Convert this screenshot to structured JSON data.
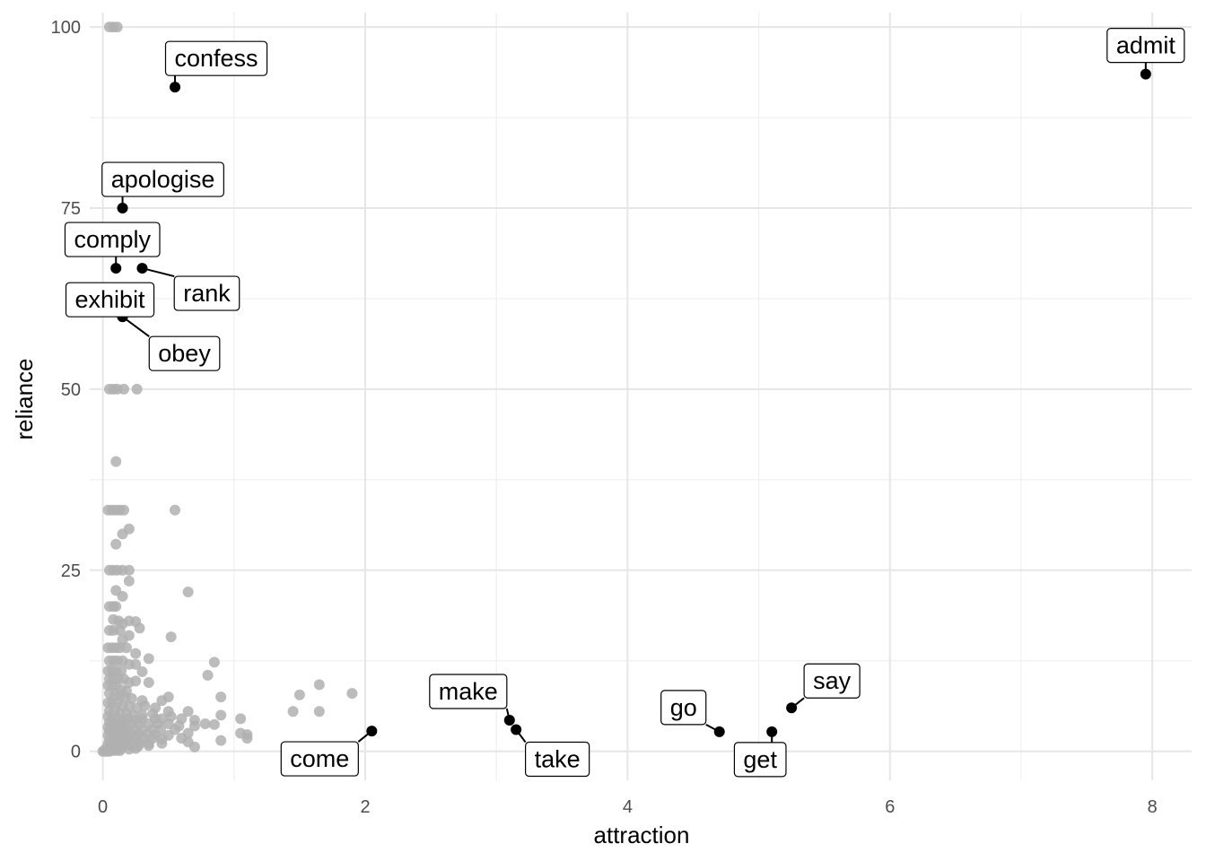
{
  "chart_data": {
    "type": "scatter",
    "xlabel": "attraction",
    "ylabel": "reliance",
    "xlim": [
      -0.1,
      8.3
    ],
    "ylim": [
      -4,
      102
    ],
    "x_ticks": [
      0,
      2,
      4,
      6,
      8
    ],
    "y_ticks": [
      0,
      25,
      50,
      75,
      100
    ],
    "grid": true,
    "legend": "none",
    "colors": {
      "background_points": "#b0b0b0",
      "highlight_points": "#000000"
    },
    "highlighted": [
      {
        "label": "admit",
        "x": 7.95,
        "y": 93.5
      },
      {
        "label": "confess",
        "x": 0.55,
        "y": 91.7
      },
      {
        "label": "apologise",
        "x": 0.15,
        "y": 75
      },
      {
        "label": "comply",
        "x": 0.1,
        "y": 66.7
      },
      {
        "label": "rank",
        "x": 0.3,
        "y": 66.7
      },
      {
        "label": "exhibit",
        "x": 0.15,
        "y": 60
      },
      {
        "label": "obey",
        "x": 0.15,
        "y": 60
      },
      {
        "label": "make",
        "x": 3.1,
        "y": 4.3
      },
      {
        "label": "take",
        "x": 3.15,
        "y": 3
      },
      {
        "label": "come",
        "x": 2.05,
        "y": 2.8
      },
      {
        "label": "say",
        "x": 5.25,
        "y": 6
      },
      {
        "label": "go",
        "x": 4.7,
        "y": 2.7
      },
      {
        "label": "get",
        "x": 5.1,
        "y": 2.7
      }
    ],
    "background_points": [
      [
        0.05,
        100
      ],
      [
        0.08,
        100
      ],
      [
        0.11,
        100
      ],
      [
        0.05,
        50
      ],
      [
        0.08,
        50
      ],
      [
        0.11,
        50
      ],
      [
        0.16,
        50
      ],
      [
        0.26,
        50
      ],
      [
        0.1,
        40
      ],
      [
        0.04,
        33.3
      ],
      [
        0.07,
        33.3
      ],
      [
        0.1,
        33.3
      ],
      [
        0.13,
        33.3
      ],
      [
        0.16,
        33.3
      ],
      [
        0.55,
        33.3
      ],
      [
        0.2,
        30.7
      ],
      [
        0.15,
        30
      ],
      [
        0.1,
        28.6
      ],
      [
        0.05,
        25
      ],
      [
        0.08,
        25
      ],
      [
        0.11,
        25
      ],
      [
        0.15,
        25
      ],
      [
        0.2,
        25
      ],
      [
        0.2,
        23.5
      ],
      [
        0.1,
        22.2
      ],
      [
        0.15,
        21.4
      ],
      [
        0.65,
        22
      ],
      [
        0.05,
        20
      ],
      [
        0.08,
        20
      ],
      [
        0.1,
        20
      ],
      [
        0.08,
        18.2
      ],
      [
        0.12,
        18
      ],
      [
        0.2,
        18
      ],
      [
        0.25,
        17.9
      ],
      [
        0.15,
        17.6
      ],
      [
        0.28,
        17
      ],
      [
        0.05,
        16.7
      ],
      [
        0.08,
        16.7
      ],
      [
        0.13,
        16.7
      ],
      [
        0.2,
        16
      ],
      [
        0.15,
        15.4
      ],
      [
        0.52,
        15.8
      ],
      [
        0.04,
        14.3
      ],
      [
        0.07,
        14.3
      ],
      [
        0.1,
        14.3
      ],
      [
        0.13,
        14.3
      ],
      [
        0.18,
        14.3
      ],
      [
        0.25,
        13.5
      ],
      [
        0.05,
        12.5
      ],
      [
        0.08,
        12.5
      ],
      [
        0.11,
        12.5
      ],
      [
        0.15,
        12.5
      ],
      [
        0.2,
        12
      ],
      [
        0.25,
        12
      ],
      [
        0.35,
        12.8
      ],
      [
        0.85,
        12.3
      ],
      [
        0.04,
        11.1
      ],
      [
        0.07,
        11.1
      ],
      [
        0.1,
        11.1
      ],
      [
        0.14,
        11.1
      ],
      [
        0.3,
        11
      ],
      [
        0.8,
        10.5
      ],
      [
        0.05,
        10
      ],
      [
        0.08,
        10
      ],
      [
        0.12,
        10
      ],
      [
        0.16,
        10
      ],
      [
        0.2,
        9.5
      ],
      [
        0.25,
        9.7
      ],
      [
        0.35,
        9.5
      ],
      [
        0.04,
        9.1
      ],
      [
        0.07,
        9.1
      ],
      [
        0.1,
        9.1
      ],
      [
        0.14,
        8.5
      ],
      [
        0.18,
        8.3
      ],
      [
        0.05,
        8
      ],
      [
        0.09,
        7.7
      ],
      [
        0.13,
        7.7
      ],
      [
        0.17,
        7.5
      ],
      [
        0.22,
        7.3
      ],
      [
        0.3,
        7
      ],
      [
        0.45,
        7
      ],
      [
        0.5,
        7.5
      ],
      [
        0.9,
        7.5
      ],
      [
        0.04,
        6.7
      ],
      [
        0.07,
        6.7
      ],
      [
        0.11,
        6.7
      ],
      [
        0.15,
        6.3
      ],
      [
        0.2,
        6.2
      ],
      [
        0.26,
        6
      ],
      [
        0.32,
        6.3
      ],
      [
        0.4,
        6
      ],
      [
        0.05,
        5.6
      ],
      [
        0.09,
        5.5
      ],
      [
        0.13,
        5.3
      ],
      [
        0.18,
        5.2
      ],
      [
        0.23,
        5
      ],
      [
        0.3,
        5
      ],
      [
        0.38,
        5.2
      ],
      [
        0.5,
        5.5
      ],
      [
        0.65,
        5.5
      ],
      [
        0.9,
        5
      ],
      [
        0.04,
        4.8
      ],
      [
        0.07,
        4.5
      ],
      [
        0.11,
        4.5
      ],
      [
        0.15,
        4.3
      ],
      [
        0.19,
        4.5
      ],
      [
        0.25,
        4.3
      ],
      [
        0.3,
        4.5
      ],
      [
        0.4,
        4.5
      ],
      [
        0.45,
        4.5
      ],
      [
        0.52,
        4.8
      ],
      [
        0.6,
        4.5
      ],
      [
        0.7,
        4.3
      ],
      [
        1.05,
        4.5
      ],
      [
        0.05,
        4
      ],
      [
        0.09,
        4
      ],
      [
        0.13,
        3.8
      ],
      [
        0.17,
        3.8
      ],
      [
        0.22,
        3.8
      ],
      [
        0.28,
        3.8
      ],
      [
        0.35,
        3.8
      ],
      [
        0.42,
        3.8
      ],
      [
        0.5,
        3.8
      ],
      [
        0.58,
        3.5
      ],
      [
        0.7,
        3.5
      ],
      [
        0.78,
        3.8
      ],
      [
        0.85,
        3.7
      ],
      [
        0.04,
        3.3
      ],
      [
        0.07,
        3.3
      ],
      [
        0.1,
        3.2
      ],
      [
        0.14,
        3.2
      ],
      [
        0.18,
        3
      ],
      [
        0.23,
        3
      ],
      [
        0.3,
        3
      ],
      [
        0.38,
        3
      ],
      [
        0.44,
        3
      ],
      [
        0.55,
        3
      ],
      [
        0.05,
        2.8
      ],
      [
        0.09,
        2.7
      ],
      [
        0.13,
        2.6
      ],
      [
        0.17,
        2.5
      ],
      [
        0.21,
        2.5
      ],
      [
        0.27,
        2.4
      ],
      [
        0.34,
        2.4
      ],
      [
        0.4,
        2.3
      ],
      [
        0.5,
        2.2
      ],
      [
        0.65,
        2.5
      ],
      [
        1.05,
        2.5
      ],
      [
        1.1,
        2.3
      ],
      [
        0.04,
        2.2
      ],
      [
        0.08,
        2.1
      ],
      [
        0.12,
        2
      ],
      [
        0.16,
        2
      ],
      [
        0.2,
        1.9
      ],
      [
        0.25,
        1.9
      ],
      [
        0.31,
        1.8
      ],
      [
        0.38,
        1.8
      ],
      [
        0.45,
        1.7
      ],
      [
        0.6,
        1.8
      ],
      [
        1.1,
        1.8
      ],
      [
        0.05,
        1.5
      ],
      [
        0.09,
        1.5
      ],
      [
        0.13,
        1.4
      ],
      [
        0.17,
        1.3
      ],
      [
        0.22,
        1.2
      ],
      [
        0.28,
        1.2
      ],
      [
        0.35,
        1.1
      ],
      [
        0.45,
        1.1
      ],
      [
        0.65,
        1.3
      ],
      [
        0.9,
        1.5
      ],
      [
        0.04,
        1
      ],
      [
        0.08,
        1
      ],
      [
        0.12,
        0.9
      ],
      [
        0.16,
        0.8
      ],
      [
        0.21,
        0.8
      ],
      [
        0.27,
        0.7
      ],
      [
        0.35,
        0.8
      ],
      [
        0.7,
        0.6
      ],
      [
        0.02,
        0.3
      ],
      [
        0.06,
        0.5
      ],
      [
        0.1,
        0.4
      ],
      [
        0.14,
        0.4
      ],
      [
        0.2,
        0.3
      ],
      [
        0.25,
        0.4
      ],
      [
        0.0,
        0
      ],
      [
        0.01,
        0
      ],
      [
        0.03,
        0
      ],
      [
        0.05,
        0
      ],
      [
        0.07,
        0.1
      ],
      [
        0.1,
        0.1
      ],
      [
        0.13,
        0.1
      ],
      [
        1.45,
        5.5
      ],
      [
        1.5,
        7.8
      ],
      [
        1.65,
        9.2
      ],
      [
        1.65,
        5.5
      ],
      [
        1.9,
        8
      ]
    ]
  }
}
